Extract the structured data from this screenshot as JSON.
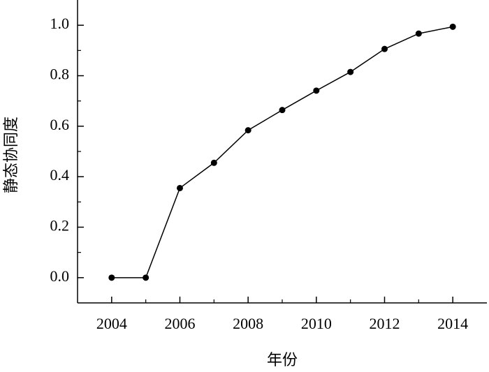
{
  "chart_data": {
    "type": "line",
    "xlabel": "年份",
    "ylabel": "静态协同度",
    "x": [
      2004,
      2005,
      2006,
      2007,
      2008,
      2009,
      2010,
      2011,
      2012,
      2013,
      2014
    ],
    "series": [
      {
        "color": "#000000",
        "values": [
          0,
          0,
          0.355,
          0.455,
          0.584,
          0.664,
          0.741,
          0.815,
          0.906,
          0.967,
          0.994
        ]
      }
    ],
    "xlim": [
      2003,
      2015
    ],
    "ylim": [
      -0.1,
      1.1
    ],
    "xticks": [
      2004,
      2006,
      2008,
      2010,
      2012,
      2014
    ],
    "xminorticks": [
      2005,
      2007,
      2009,
      2011,
      2013
    ],
    "yticks": [
      {
        "value": 0,
        "label": "0.0"
      },
      0.2,
      0.4,
      0.6,
      0.8,
      {
        "value": 1,
        "label": "1.0"
      }
    ],
    "yminorticks": [
      0.1,
      0.3,
      0.5,
      0.7,
      0.9
    ],
    "grid": false
  }
}
